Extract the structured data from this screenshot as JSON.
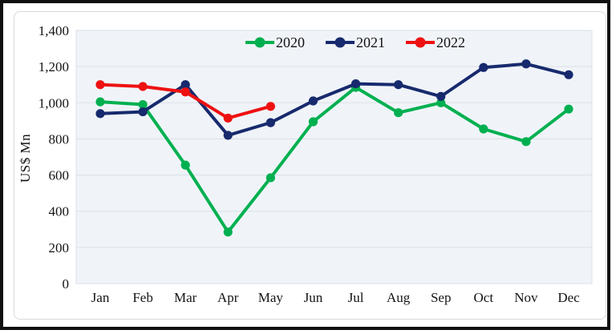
{
  "y_axis_title": "US$ Mn",
  "chart_data": {
    "type": "line",
    "title": "",
    "xlabel": "",
    "ylabel": "US$ Mn",
    "ylim": [
      0,
      1400
    ],
    "y_tick_step": 200,
    "y_tick_labels": [
      "0",
      "200",
      "400",
      "600",
      "800",
      "1,000",
      "1,200",
      "1,400"
    ],
    "categories": [
      "Jan",
      "Feb",
      "Mar",
      "Apr",
      "May",
      "Jun",
      "Jul",
      "Aug",
      "Sep",
      "Oct",
      "Nov",
      "Dec"
    ],
    "series": [
      {
        "name": "2020",
        "color": "#00B050",
        "values": [
          1005,
          990,
          655,
          285,
          585,
          895,
          1085,
          945,
          1000,
          855,
          785,
          965
        ]
      },
      {
        "name": "2021",
        "color": "#172A6D",
        "values": [
          940,
          950,
          1100,
          820,
          890,
          1010,
          1105,
          1100,
          1035,
          1195,
          1215,
          1155
        ]
      },
      {
        "name": "2022",
        "color": "#EE1111",
        "values": [
          1100,
          1090,
          1060,
          915,
          980
        ]
      }
    ],
    "legend_position": "top",
    "grid": true,
    "plot_bg": "#F0F4F9",
    "plot_border": "#DCE1E8",
    "gridline_color": "#DFE4EA"
  }
}
